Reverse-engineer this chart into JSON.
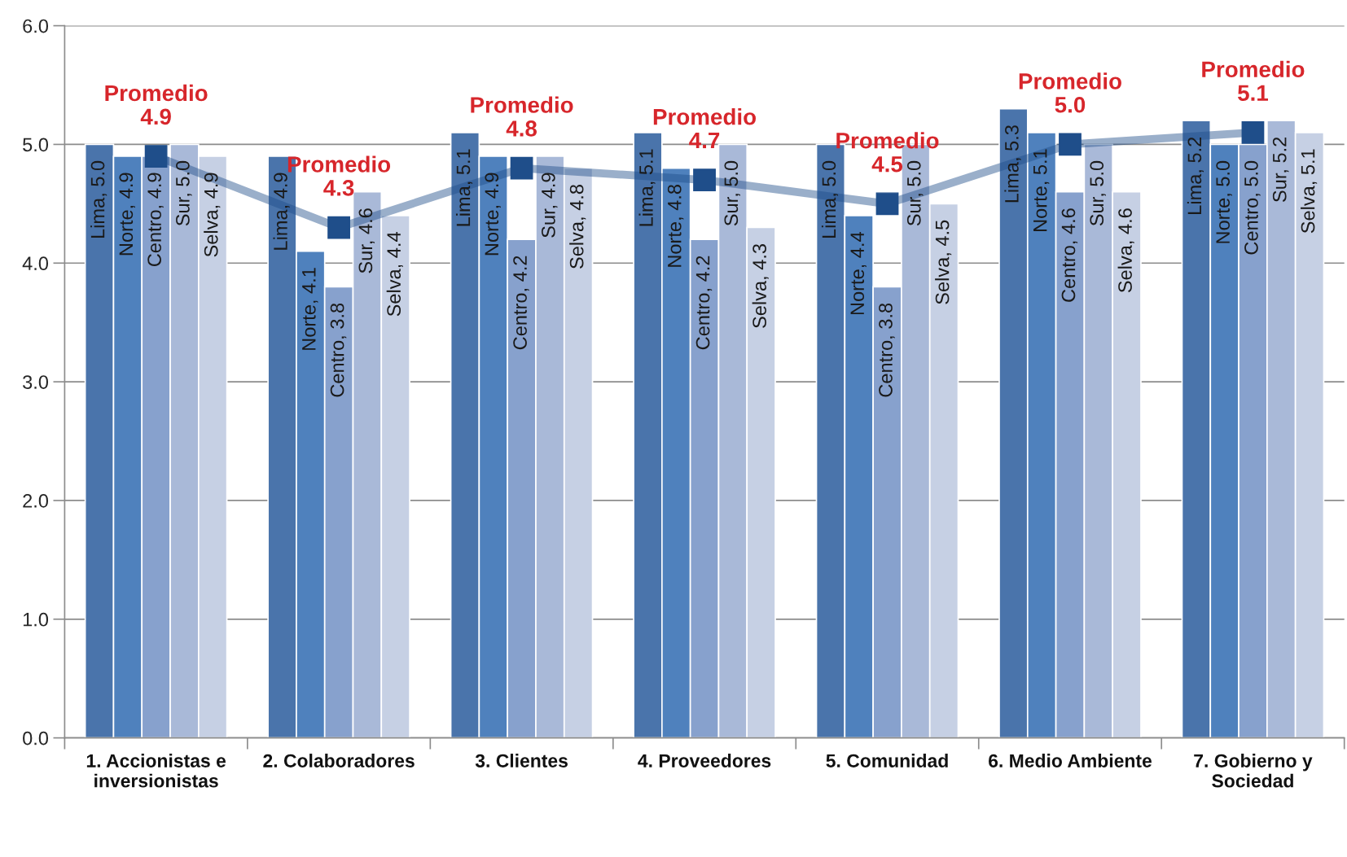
{
  "chart_data": {
    "type": "bar",
    "categories": [
      "1. Accionistas e\ninversionistas",
      "2. Colaboradores",
      "3. Clientes",
      "4. Proveedores",
      "5. Comunidad",
      "6. Medio Ambiente",
      "7. Gobierno y\nSociedad"
    ],
    "ylim": [
      0,
      6
    ],
    "yticks": [
      {
        "value": 0,
        "label": "0.0"
      },
      {
        "value": 1,
        "label": "1.0"
      },
      {
        "value": 2,
        "label": "2.0"
      },
      {
        "value": 3,
        "label": "3.0"
      },
      {
        "value": 4,
        "label": "4.0"
      },
      {
        "value": 5,
        "label": "5.0"
      },
      {
        "value": 6,
        "label": "6.0"
      }
    ],
    "grid": "y",
    "series": [
      {
        "color": "#4a74ab",
        "values": [
          5.0,
          4.9,
          5.1,
          5.1,
          5.0,
          5.3,
          5.2
        ],
        "value_labels": [
          "Lima, 5.0",
          "Lima, 4.9",
          "Lima, 5.1",
          "Lima, 5.1",
          "Lima, 5.0",
          "Lima, 5.3",
          "Lima, 5.2"
        ]
      },
      {
        "color": "#4f81bd",
        "values": [
          4.9,
          4.1,
          4.9,
          4.8,
          4.4,
          5.1,
          5.0
        ],
        "value_labels": [
          "Norte, 4.9",
          "Norte, 4.1",
          "Norte, 4.9",
          "Norte, 4.8",
          "Norte, 4.4",
          "Norte, 5.1",
          "Norte, 5.0"
        ]
      },
      {
        "color": "#87a1cd",
        "values": [
          4.9,
          3.8,
          4.2,
          4.2,
          3.8,
          4.6,
          5.0
        ],
        "value_labels": [
          "Centro, 4.9",
          "Centro, 3.8",
          "Centro, 4.2",
          "Centro, 4.2",
          "Centro, 3.8",
          "Centro, 4.6",
          "Centro, 5.0"
        ]
      },
      {
        "color": "#a9b9d8",
        "values": [
          5.0,
          4.6,
          4.9,
          5.0,
          5.0,
          5.0,
          5.2
        ],
        "value_labels": [
          "Sur, 5.0",
          "Sur, 4.6",
          "Sur, 4.9",
          "Sur, 5.0",
          "Sur, 5.0",
          "Sur, 5.0",
          "Sur, 5.2"
        ]
      },
      {
        "color": "#c6d0e4",
        "values": [
          4.9,
          4.4,
          4.8,
          4.3,
          4.5,
          4.6,
          5.1
        ],
        "value_labels": [
          "Selva, 4.9",
          "Selva, 4.4",
          "Selva, 4.8",
          "Selva, 4.3",
          "Selva, 4.5",
          "Selva, 4.6",
          "Selva, 5.1"
        ]
      },
      {
        "type": "line",
        "marker": "square",
        "color": "#1f4e8a",
        "values": [
          4.9,
          4.3,
          4.8,
          4.7,
          4.5,
          5.0,
          5.1
        ],
        "value_labels": [
          "Promedio\n4.9",
          "Promedio\n4.3",
          "Promedio\n4.8",
          "Promedio\n4.7",
          "Promedio\n4.5",
          "Promedio\n5.0",
          "Promedio\n5.1"
        ]
      }
    ]
  }
}
